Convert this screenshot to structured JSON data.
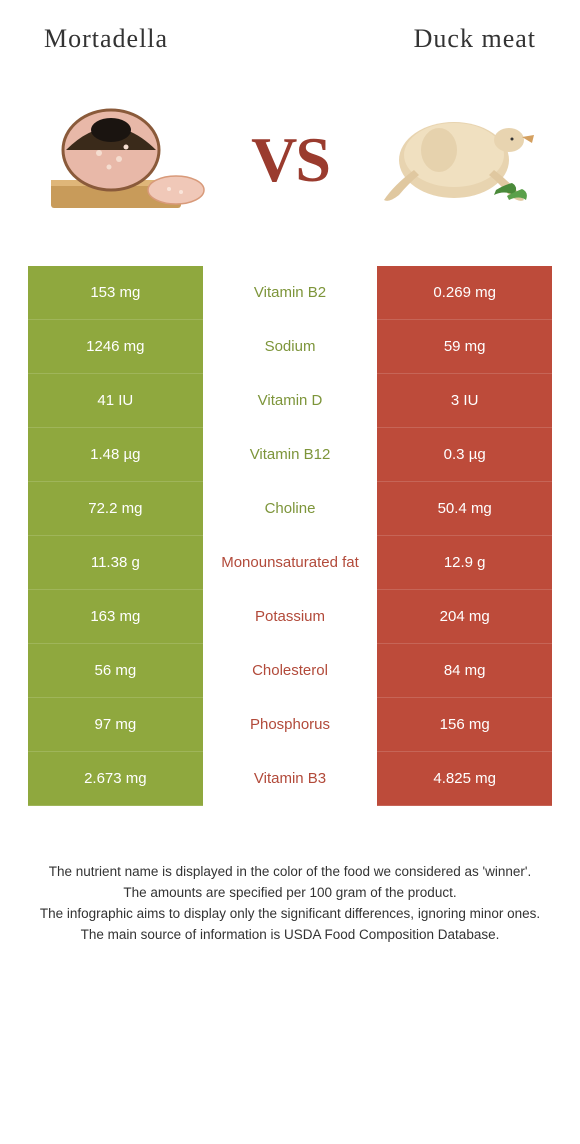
{
  "header": {
    "left": "Mortadella",
    "right": "Duck meat"
  },
  "vs_text": "VS",
  "colors": {
    "left_bg": "#8fa83e",
    "right_bg": "#bd4b3a",
    "left_text": "#7d953a",
    "right_text": "#b24a3a",
    "vs": "#9a3b2e"
  },
  "nutrients": [
    {
      "name": "Vitamin B2",
      "left": "153 mg",
      "right": "0.269 mg",
      "winner": "left"
    },
    {
      "name": "Sodium",
      "left": "1246 mg",
      "right": "59 mg",
      "winner": "left"
    },
    {
      "name": "Vitamin D",
      "left": "41 IU",
      "right": "3 IU",
      "winner": "left"
    },
    {
      "name": "Vitamin B12",
      "left": "1.48 µg",
      "right": "0.3 µg",
      "winner": "left"
    },
    {
      "name": "Choline",
      "left": "72.2 mg",
      "right": "50.4 mg",
      "winner": "left"
    },
    {
      "name": "Monounsaturated fat",
      "left": "11.38 g",
      "right": "12.9 g",
      "winner": "right"
    },
    {
      "name": "Potassium",
      "left": "163 mg",
      "right": "204 mg",
      "winner": "right"
    },
    {
      "name": "Cholesterol",
      "left": "56 mg",
      "right": "84 mg",
      "winner": "right"
    },
    {
      "name": "Phosphorus",
      "left": "97 mg",
      "right": "156 mg",
      "winner": "right"
    },
    {
      "name": "Vitamin B3",
      "left": "2.673 mg",
      "right": "4.825 mg",
      "winner": "right"
    }
  ],
  "footnote": {
    "line1": "The nutrient name is displayed in the color of the food we considered as 'winner'.",
    "line2": "The amounts are specified per 100 gram of the product.",
    "line3": "The infographic aims to display only the significant differences, ignoring minor ones.",
    "line4": "The main source of information is USDA Food Composition Database."
  }
}
